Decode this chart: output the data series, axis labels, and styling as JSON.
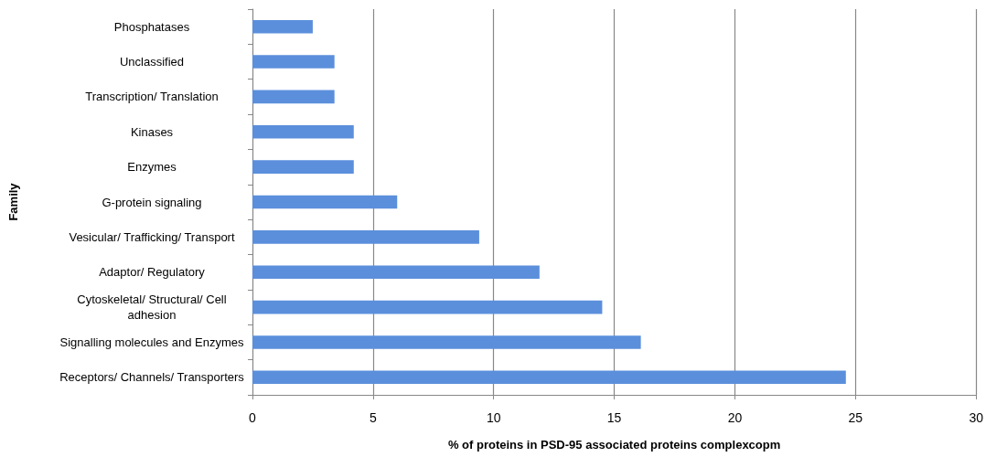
{
  "chart_data": {
    "type": "bar",
    "orientation": "horizontal",
    "xlabel": "% of proteins in PSD-95 associated proteins complexcopm",
    "ylabel": "Family",
    "categories": [
      "Phosphatases",
      "Unclassified",
      "Transcription/ Translation",
      "Kinases",
      "Enzymes",
      "G-protein signaling",
      "Vesicular/ Trafficking/ Transport",
      "Adaptor/ Regulatory",
      "Cytoskeletal/ Structural/ Cell adhesion",
      "Signalling molecules and Enzymes",
      "Receptors/ Channels/ Transporters"
    ],
    "values": [
      2.5,
      3.4,
      3.4,
      4.2,
      4.2,
      6.0,
      9.4,
      11.9,
      14.5,
      16.1,
      24.6
    ],
    "color": "#5b8fdc",
    "xlim": [
      0,
      30
    ],
    "xticks": [
      0,
      5,
      10,
      15,
      20,
      25,
      30
    ],
    "grid": "x"
  }
}
